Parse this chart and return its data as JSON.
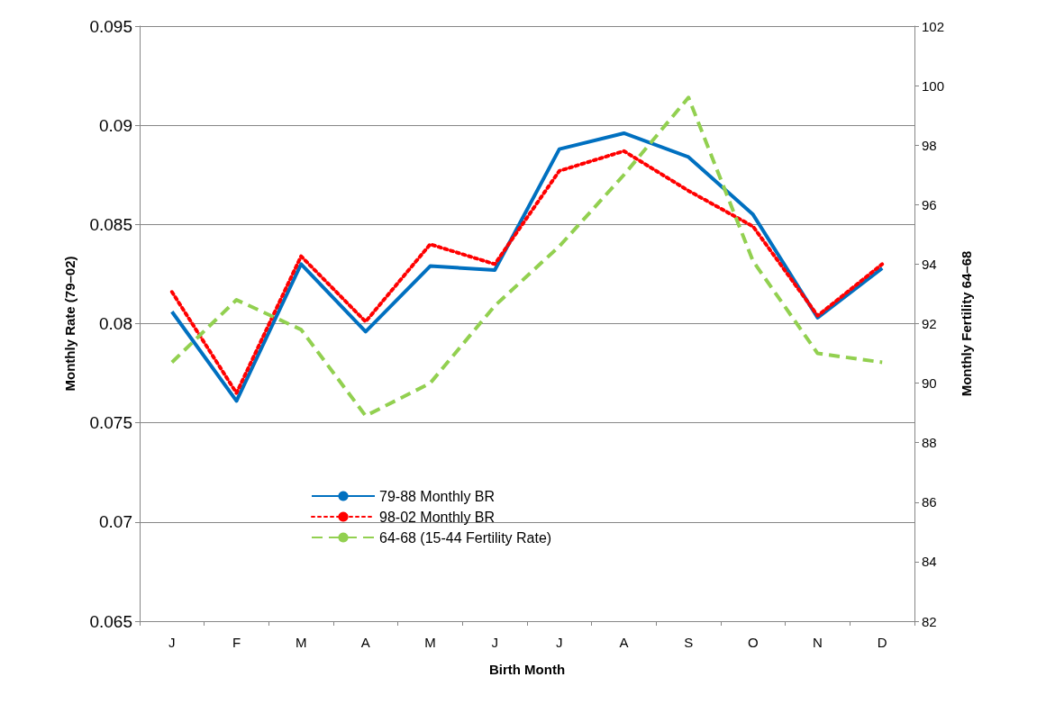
{
  "chart_data": {
    "type": "line",
    "xlabel": "Birth Month",
    "ylabel": "Monthly Rate (79–02)",
    "y2label": "Monthly Fertility 64–68",
    "categories": [
      "J",
      "F",
      "M",
      "A",
      "M",
      "J",
      "J",
      "A",
      "S",
      "O",
      "N",
      "D"
    ],
    "series": [
      {
        "name": "79-88 Monthly BR",
        "color": "#0070c0",
        "line_style": "solid",
        "values": [
          0.0806,
          0.0761,
          0.083,
          0.0796,
          0.0829,
          0.0827,
          0.0888,
          0.0896,
          0.0884,
          0.0855,
          0.0803,
          0.0828
        ]
      },
      {
        "name": "98-02 Monthly BR",
        "color": "#ff0000",
        "line_style": "dotted",
        "values": [
          0.0816,
          0.0765,
          0.0834,
          0.0801,
          0.084,
          0.083,
          0.0877,
          0.0887,
          0.0867,
          0.0849,
          0.0804,
          0.083
        ]
      },
      {
        "name": "64-68 (15-44 Fertility Rate)",
        "color": "#92d050",
        "line_style": "dashed",
        "axis": "y2",
        "values": [
          90.7,
          92.8,
          91.8,
          88.9,
          90.0,
          92.6,
          94.6,
          97.0,
          99.6,
          94.1,
          91.0,
          90.7
        ]
      }
    ],
    "ylim": [
      0.065,
      0.095
    ],
    "yticks": [
      0.065,
      0.07,
      0.075,
      0.08,
      0.085,
      0.09,
      0.095
    ],
    "y2lim": [
      82,
      102
    ],
    "y2ticks": [
      82,
      84,
      86,
      88,
      90,
      92,
      94,
      96,
      98,
      100,
      102
    ],
    "grid": "y",
    "legend": "bottom left",
    "marker": "none"
  }
}
